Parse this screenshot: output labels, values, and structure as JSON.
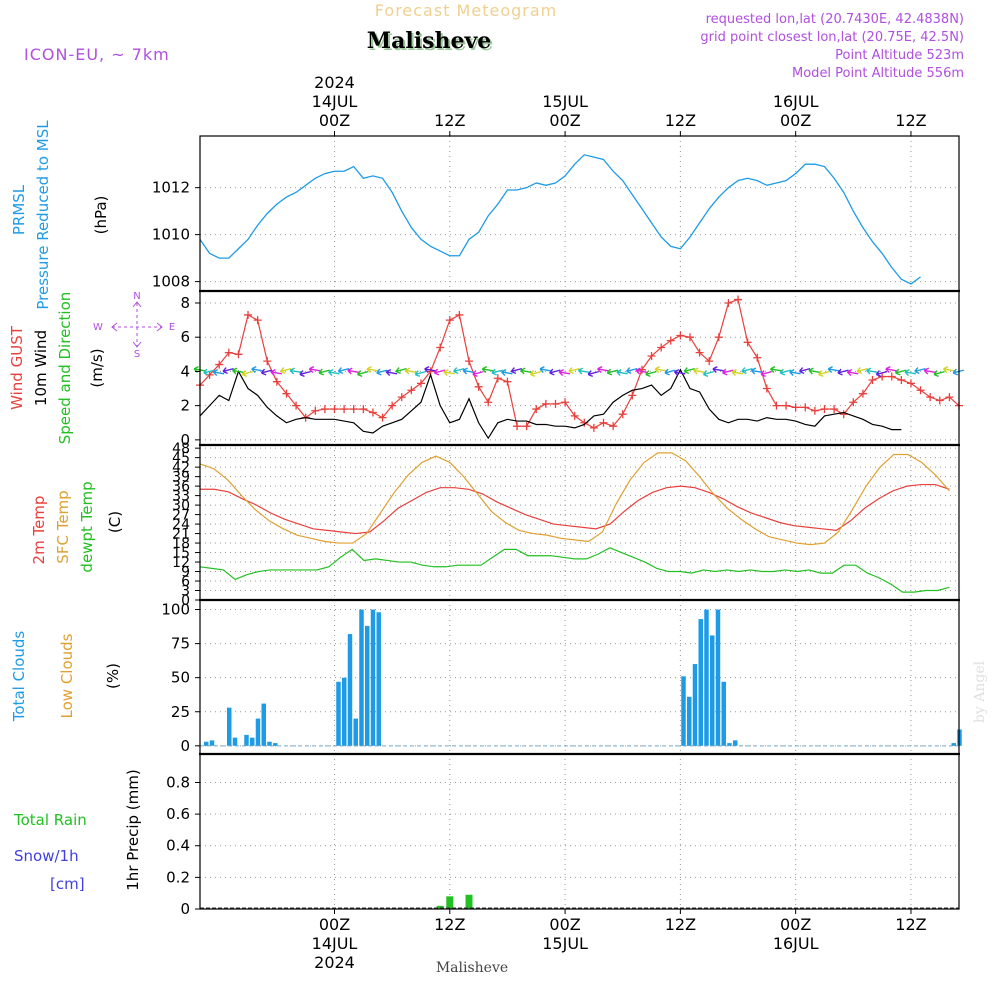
{
  "header": {
    "super_title": "Forecast Meteogram",
    "location": "Malisheve",
    "model": "ICON-EU, ~ 7km",
    "requested": "requested lon,lat (20.7430E, 42.4838N)",
    "grid_point": "grid point closest lon,lat (20.75E, 42.5N)",
    "point_altitude": "Point Altitude 523m",
    "model_altitude": "Model Point Altitude 556m",
    "footer_location": "Malisheve",
    "credit": "by Angel"
  },
  "time_axis": {
    "top_labels": [
      {
        "t": 14,
        "lines": [
          "2024",
          "14JUL",
          "00Z"
        ]
      },
      {
        "t": 26,
        "lines": [
          "12Z"
        ]
      },
      {
        "t": 38,
        "lines": [
          "15JUL",
          "00Z"
        ]
      },
      {
        "t": 50,
        "lines": [
          "12Z"
        ]
      },
      {
        "t": 62,
        "lines": [
          "16JUL",
          "00Z"
        ]
      },
      {
        "t": 74,
        "lines": [
          "12Z"
        ]
      }
    ],
    "bottom_labels": [
      {
        "t": 14,
        "lines": [
          "00Z",
          "14JUL",
          "2024"
        ]
      },
      {
        "t": 26,
        "lines": [
          "12Z"
        ]
      },
      {
        "t": 38,
        "lines": [
          "00Z",
          "15JUL"
        ]
      },
      {
        "t": 50,
        "lines": [
          "12Z"
        ]
      },
      {
        "t": 62,
        "lines": [
          "00Z",
          "16JUL"
        ]
      },
      {
        "t": 74,
        "lines": [
          "12Z"
        ]
      }
    ]
  },
  "labels": {
    "prmsl": "PRMSL",
    "pressure": "Pressure Reduced to MSL",
    "hpa": "(hPa)",
    "wind_gust": "Wind GUST",
    "wind_10m": "10m Wind",
    "wind_speed_dir": "Speed and Direction",
    "ms": "(m/s)",
    "compass_n": "N",
    "compass_s": "S",
    "compass_w": "W",
    "compass_e": "E",
    "temp_2m": "2m Temp",
    "temp_sfc": "SFC Temp",
    "temp_dewpt": "dewpt Temp",
    "celsius": "(C)",
    "total_clouds": "Total Clouds",
    "low_clouds": "Low Clouds",
    "percent": "(%)",
    "total_rain": "Total  Rain",
    "snow": "Snow/1h",
    "cm": "[cm]",
    "precip": "1hr Precip (mm)"
  },
  "colors": {
    "pressure": "#1E9BE6",
    "gust": "#E8403C",
    "wind": "#000000",
    "temp2m": "#E8403C",
    "sfc": "#E0A030",
    "dewpt": "#22C022",
    "clouds": "#1E9BE6",
    "rain": "#22C022",
    "snow": "#4040E0",
    "purple": "#B04FE0",
    "title_gold": "#F0D090"
  },
  "chart_data": [
    {
      "type": "line",
      "title": "Pressure Reduced to MSL",
      "ylabel": "hPa",
      "ylim": [
        1007.6,
        1014.2
      ],
      "yticks": [
        1008,
        1010,
        1012
      ],
      "x_hours_start": 0,
      "series": [
        {
          "name": "PRMSL",
          "values": [
            1009.8,
            1009.2,
            1009.0,
            1009.0,
            1009.4,
            1009.8,
            1010.4,
            1010.9,
            1011.3,
            1011.6,
            1011.8,
            1012.1,
            1012.4,
            1012.6,
            1012.7,
            1012.7,
            1012.9,
            1012.4,
            1012.5,
            1012.4,
            1011.8,
            1011.0,
            1010.3,
            1009.8,
            1009.5,
            1009.3,
            1009.1,
            1009.1,
            1009.8,
            1010.1,
            1010.8,
            1011.3,
            1011.9,
            1011.9,
            1012.0,
            1012.2,
            1012.1,
            1012.2,
            1012.5,
            1013.0,
            1013.4,
            1013.3,
            1013.2,
            1012.7,
            1012.3,
            1011.7,
            1011.1,
            1010.5,
            1009.9,
            1009.5,
            1009.4,
            1009.9,
            1010.5,
            1011.1,
            1011.6,
            1012.0,
            1012.3,
            1012.4,
            1012.3,
            1012.1,
            1012.2,
            1012.3,
            1012.6,
            1013.0,
            1013.0,
            1012.9,
            1012.4,
            1011.8,
            1011.0,
            1010.3,
            1009.7,
            1009.2,
            1008.6,
            1008.1,
            1007.9,
            1008.2
          ]
        }
      ]
    },
    {
      "type": "line",
      "title": "Wind GUST / 10m Wind Speed and Direction",
      "ylabel": "m/s",
      "ylim": [
        -0.3,
        8.7
      ],
      "yticks": [
        0,
        2,
        4,
        6,
        8
      ],
      "series": [
        {
          "name": "Wind GUST",
          "values": [
            3.2,
            3.8,
            4.4,
            5.1,
            5.0,
            7.3,
            7.0,
            4.6,
            3.4,
            2.7,
            2.0,
            1.3,
            1.7,
            1.8,
            1.8,
            1.8,
            1.8,
            1.8,
            1.6,
            1.3,
            2.0,
            2.5,
            2.9,
            3.3,
            4.0,
            5.4,
            7.0,
            7.3,
            4.6,
            3.1,
            2.2,
            3.6,
            3.4,
            0.8,
            0.8,
            1.8,
            2.1,
            2.1,
            2.2,
            1.4,
            1.0,
            0.7,
            1.0,
            0.8,
            1.5,
            2.6,
            4.1,
            4.9,
            5.4,
            5.8,
            6.1,
            6.0,
            5.1,
            4.6,
            6.0,
            8.0,
            8.2,
            5.7,
            4.8,
            3.0,
            2.0,
            2.0,
            1.9,
            1.9,
            1.7,
            1.8,
            1.8,
            1.5,
            2.2,
            2.7,
            3.5,
            3.7,
            3.7,
            3.5,
            3.3,
            2.9,
            2.5,
            2.3,
            2.5,
            2.0
          ]
        },
        {
          "name": "10m Wind",
          "values": [
            1.4,
            2.0,
            2.6,
            2.3,
            4.0,
            3.0,
            2.6,
            1.9,
            1.4,
            1.0,
            1.2,
            1.3,
            1.2,
            1.2,
            1.2,
            1.1,
            1.0,
            0.5,
            0.4,
            0.8,
            1.0,
            1.2,
            1.7,
            2.2,
            3.8,
            2.0,
            1.0,
            1.2,
            2.4,
            1.0,
            0.1,
            1.0,
            1.2,
            1.1,
            1.1,
            0.9,
            0.9,
            0.8,
            0.8,
            0.7,
            0.9,
            1.4,
            1.5,
            2.2,
            2.6,
            2.9,
            3.0,
            3.2,
            2.6,
            3.0,
            4.1,
            3.0,
            2.8,
            1.8,
            1.2,
            1.0,
            1.2,
            1.2,
            1.1,
            1.3,
            1.2,
            1.2,
            1.1,
            0.9,
            0.8,
            1.4,
            1.5,
            1.6,
            1.4,
            1.2,
            0.9,
            0.8,
            0.6,
            0.6
          ]
        }
      ]
    },
    {
      "type": "line",
      "title": "2m Temp / SFC Temp / dewpt Temp",
      "ylabel": "C",
      "ylim": [
        0,
        49
      ],
      "yticks": [
        0,
        3,
        6,
        9,
        12,
        15,
        18,
        21,
        24,
        27,
        30,
        33,
        36,
        39,
        42,
        45,
        48
      ],
      "series": [
        {
          "name": "2m Temp",
          "values": [
            35.0,
            35.0,
            34.2,
            32.0,
            30.0,
            27.5,
            25.5,
            24.0,
            22.5,
            22.0,
            21.5,
            21.0,
            21.5,
            25.0,
            29.0,
            31.5,
            34.0,
            35.5,
            35.5,
            35.0,
            33.5,
            31.0,
            29.0,
            27.0,
            25.5,
            24.0,
            23.5,
            23.0,
            22.5,
            24.0,
            28.0,
            31.5,
            34.0,
            35.5,
            36.0,
            35.5,
            34.0,
            32.0,
            29.5,
            27.5,
            26.0,
            24.5,
            23.5,
            23.0,
            22.5,
            22.0,
            25.0,
            29.0,
            32.0,
            34.5,
            36.0,
            36.5,
            36.5,
            35.0
          ]
        },
        {
          "name": "SFC Temp",
          "values": [
            43.0,
            41.5,
            38.0,
            33.0,
            28.5,
            25.0,
            22.5,
            20.5,
            19.5,
            18.5,
            18.0,
            18.0,
            21.0,
            27.5,
            34.0,
            39.5,
            43.5,
            45.5,
            43.5,
            39.0,
            33.5,
            28.0,
            24.5,
            22.0,
            21.0,
            20.5,
            19.5,
            19.0,
            18.5,
            21.5,
            30.5,
            38.0,
            43.5,
            46.5,
            46.5,
            44.0,
            39.0,
            33.5,
            29.0,
            25.5,
            22.5,
            20.0,
            19.0,
            18.0,
            17.5,
            18.0,
            21.5,
            28.5,
            36.0,
            42.0,
            46.0,
            46.0,
            43.5,
            39.5,
            34.5
          ]
        },
        {
          "name": "dewpt Temp",
          "values": [
            10.5,
            10.0,
            9.5,
            6.5,
            8.0,
            9.0,
            9.5,
            9.5,
            9.5,
            9.5,
            9.5,
            10.5,
            13.5,
            16.0,
            12.5,
            13.0,
            12.5,
            12.0,
            12.0,
            11.0,
            10.5,
            10.5,
            11.0,
            11.0,
            11.0,
            13.5,
            16.0,
            16.0,
            14.0,
            14.0,
            14.0,
            13.5,
            13.0,
            13.0,
            14.5,
            16.5,
            15.0,
            13.5,
            12.0,
            10.0,
            9.0,
            9.0,
            8.5,
            9.5,
            9.0,
            9.5,
            9.0,
            9.5,
            9.0,
            9.0,
            9.5,
            9.0,
            9.5,
            8.5,
            8.5,
            11.0,
            11.0,
            8.5,
            7.0,
            5.0,
            2.5,
            2.5,
            3.0,
            3.0,
            4.0
          ]
        }
      ]
    },
    {
      "type": "bar",
      "title": "Total Clouds / Low Clouds",
      "ylabel": "%",
      "ylim": [
        -6,
        107
      ],
      "yticks": [
        0,
        25,
        50,
        75,
        100
      ],
      "series": [
        {
          "name": "Total Clouds",
          "values": [
            3,
            4,
            0,
            0,
            28,
            6,
            0,
            8,
            6,
            20,
            31,
            3,
            2,
            0,
            0,
            0,
            0,
            0,
            0,
            0,
            0,
            0,
            0,
            47,
            50,
            82,
            20,
            100,
            88,
            100,
            98,
            0,
            0,
            0,
            0,
            0,
            0,
            0,
            0,
            0,
            0,
            0,
            0,
            0,
            0,
            0,
            0,
            0,
            0,
            0,
            0,
            0,
            0,
            0,
            0,
            0,
            0,
            0,
            0,
            0,
            0,
            0,
            0,
            0,
            0,
            0,
            0,
            0,
            0,
            0,
            0,
            0,
            0,
            0,
            0,
            0,
            0,
            0,
            0,
            0,
            0,
            0,
            0,
            51,
            36,
            60,
            93,
            100,
            81,
            100,
            47,
            2,
            4,
            0,
            0,
            0,
            0,
            0,
            0,
            0,
            0,
            0,
            0,
            0,
            0,
            0,
            0,
            0,
            0,
            0,
            0,
            0,
            0,
            0,
            0,
            0,
            0,
            0,
            0,
            0,
            0,
            0,
            0,
            0,
            0,
            0,
            0,
            0,
            0,
            0,
            2,
            12
          ]
        }
      ]
    },
    {
      "type": "bar",
      "title": "1hr Precip",
      "ylabel": "mm",
      "ylim": [
        0,
        0.98
      ],
      "yticks": [
        0,
        0.2,
        0.4,
        0.6,
        0.8
      ],
      "series": [
        {
          "name": "Total Rain",
          "points": [
            [
              25.0,
              0.02
            ],
            [
              26.0,
              0.08
            ],
            [
              28.0,
              0.09
            ]
          ]
        }
      ]
    }
  ]
}
